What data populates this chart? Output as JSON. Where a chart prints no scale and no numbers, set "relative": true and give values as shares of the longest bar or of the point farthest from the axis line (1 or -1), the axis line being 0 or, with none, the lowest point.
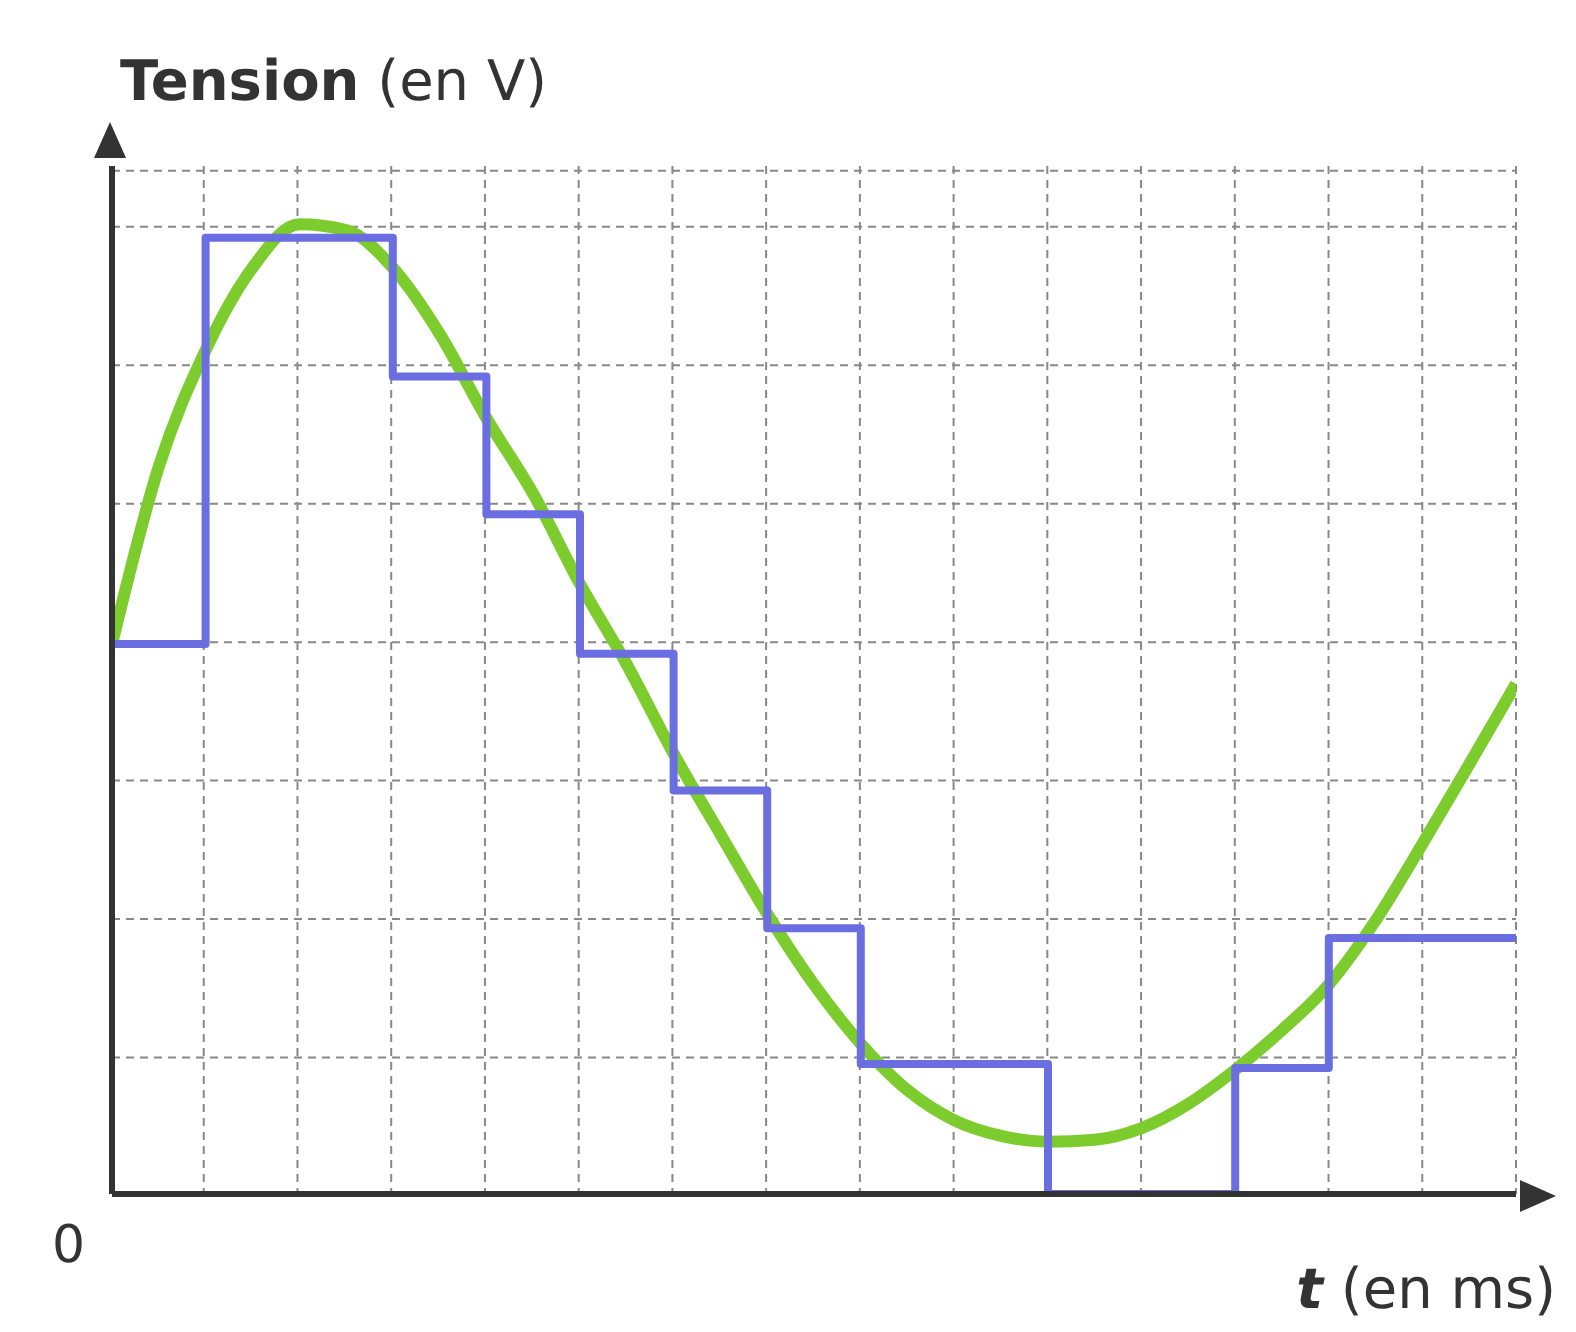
{
  "chart_data": {
    "type": "line",
    "relative": true,
    "ylabel": "Tension (en V)",
    "xlabel": "t (en ms)",
    "annotations": [
      "0"
    ],
    "grid": true,
    "categories": [
      null,
      null,
      null,
      null,
      null,
      null,
      null,
      null,
      null,
      null,
      null,
      null,
      null,
      null,
      null,
      null,
      null,
      null,
      null,
      null,
      null,
      null,
      null,
      null,
      null,
      null,
      null,
      null,
      null,
      null,
      null
    ],
    "series": [
      {
        "color": "#7dcc2e",
        "values": [
          0.567,
          0.75,
          0.87,
          0.955,
          1,
          0.994,
          0.955,
          0.887,
          0.8,
          0.722,
          0.629,
          0.546,
          0.454,
          0.371,
          0.289,
          0.216,
          0.155,
          0.107,
          0.076,
          0.06,
          0.054,
          0.056,
          0.068,
          0.093,
          0.128,
          0.169,
          0.216,
          0.282,
          0.361,
          0.443,
          0.526
        ]
      },
      {
        "type": "step",
        "color": "#6a6ee0",
        "values": [
          0.567,
          0.567,
          0.986,
          0.986,
          0.986,
          0.986,
          0.843,
          0.843,
          0.701,
          0.701,
          0.557,
          0.557,
          0.416,
          0.416,
          0.274,
          0.274,
          0.134,
          0.134,
          0.134,
          0.134,
          0,
          0,
          0,
          0,
          0.13,
          0.13,
          0.264,
          0.264,
          0.264,
          0.264,
          0.264
        ]
      }
    ]
  }
}
